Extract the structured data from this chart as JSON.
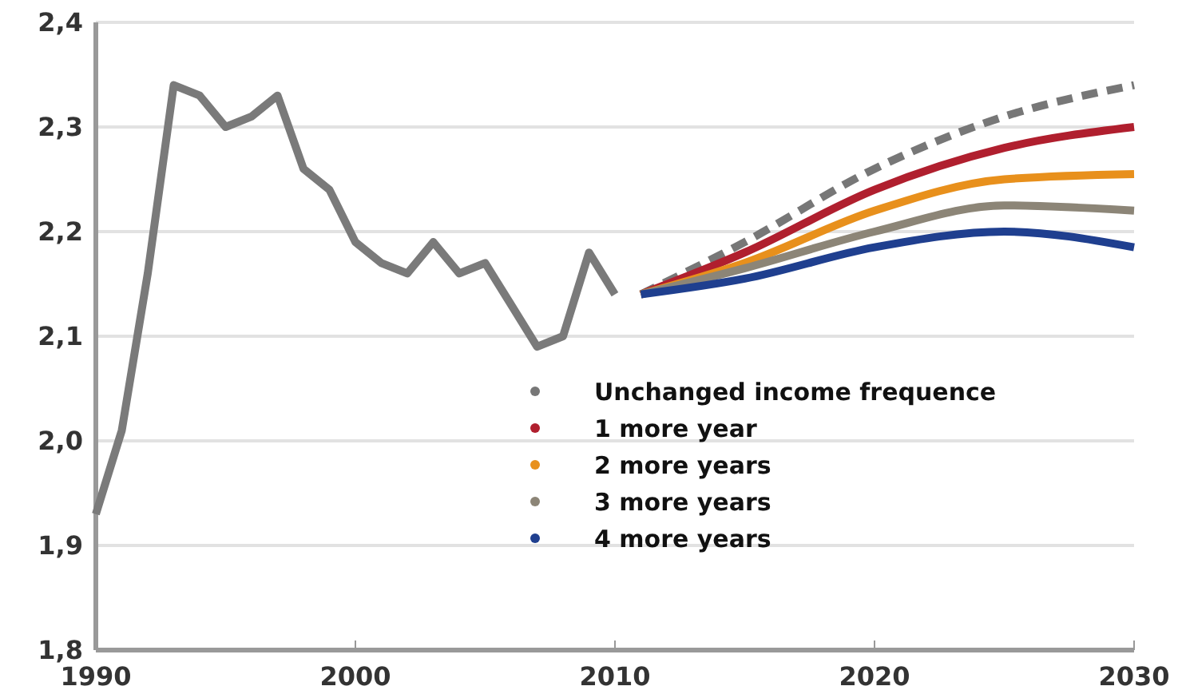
{
  "chart_data": {
    "type": "line",
    "xlim": [
      1990,
      2030
    ],
    "xticks": [
      1990,
      2000,
      2010,
      2020,
      2030
    ],
    "ylim": [
      1.8,
      2.4
    ],
    "yticks": [
      {
        "value": 1.8,
        "label": "1,8"
      },
      {
        "value": 1.9,
        "label": "1,9"
      },
      {
        "value": 2.0,
        "label": "2,0"
      },
      {
        "value": 2.1,
        "label": "2,1"
      },
      {
        "value": 2.2,
        "label": "2,2"
      },
      {
        "value": 2.3,
        "label": "2,3"
      },
      {
        "value": 2.4,
        "label": "2,4"
      }
    ],
    "grid": "y",
    "legend": "right",
    "marker": "none",
    "series": [
      {
        "color": "#7a7a7a",
        "x": [
          1990,
          1991,
          1992,
          1993,
          1994,
          1995,
          1996,
          1997,
          1998,
          1999,
          2000,
          2001,
          2002,
          2003,
          2004,
          2005,
          2006,
          2007,
          2008,
          2009,
          2010
        ],
        "values": [
          1.93,
          2.01,
          2.16,
          2.34,
          2.33,
          2.3,
          2.31,
          2.33,
          2.26,
          2.24,
          2.19,
          2.17,
          2.16,
          2.19,
          2.16,
          2.17,
          2.13,
          2.09,
          2.1,
          2.18,
          2.14
        ]
      },
      {
        "name": "Unchanged income frequence",
        "color": "#777777",
        "line_style": "dashed",
        "x": [
          2011,
          2015,
          2020,
          2025,
          2030
        ],
        "values": [
          2.14,
          2.19,
          2.26,
          2.31,
          2.34
        ]
      },
      {
        "name": "1 more year",
        "color": "#b01f2e",
        "x": [
          2011,
          2015,
          2020,
          2025,
          2030
        ],
        "values": [
          2.14,
          2.18,
          2.24,
          2.28,
          2.3
        ]
      },
      {
        "name": "2 more years",
        "color": "#e8901c",
        "x": [
          2011,
          2015,
          2020,
          2025,
          2030
        ],
        "values": [
          2.14,
          2.17,
          2.22,
          2.25,
          2.255
        ]
      },
      {
        "name": "3 more years",
        "color": "#8c8577",
        "x": [
          2011,
          2015,
          2020,
          2025,
          2030
        ],
        "values": [
          2.14,
          2.165,
          2.2,
          2.225,
          2.22
        ]
      },
      {
        "name": "4 more years",
        "color": "#1f3f8f",
        "x": [
          2011,
          2015,
          2020,
          2025,
          2030
        ],
        "values": [
          2.14,
          2.155,
          2.185,
          2.2,
          2.185
        ]
      }
    ]
  }
}
